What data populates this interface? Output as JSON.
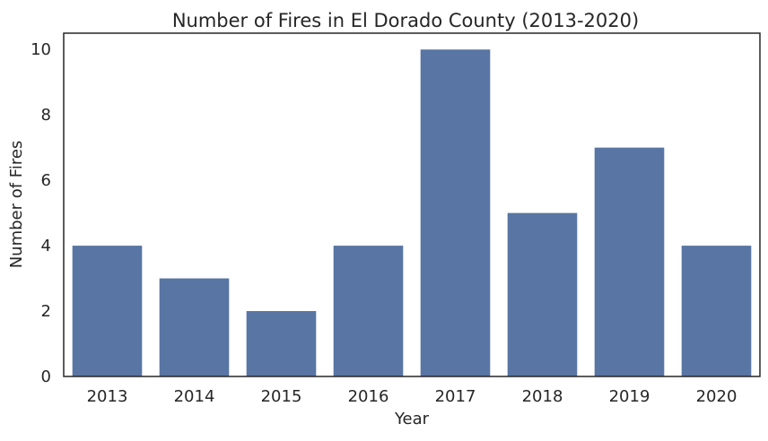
{
  "chart_data": {
    "type": "bar",
    "title": "Number of Fires in El Dorado County (2013-2020)",
    "xlabel": "Year",
    "ylabel": "Number of Fires",
    "categories": [
      "2013",
      "2014",
      "2015",
      "2016",
      "2017",
      "2018",
      "2019",
      "2020"
    ],
    "values": [
      4,
      3,
      2,
      4,
      10,
      5,
      7,
      4
    ],
    "ylim": [
      0,
      10.5
    ],
    "yticks": [
      0,
      2,
      4,
      6,
      8,
      10
    ],
    "grid": false,
    "bar_color": "#5875a4",
    "axis_color": "#262626"
  }
}
